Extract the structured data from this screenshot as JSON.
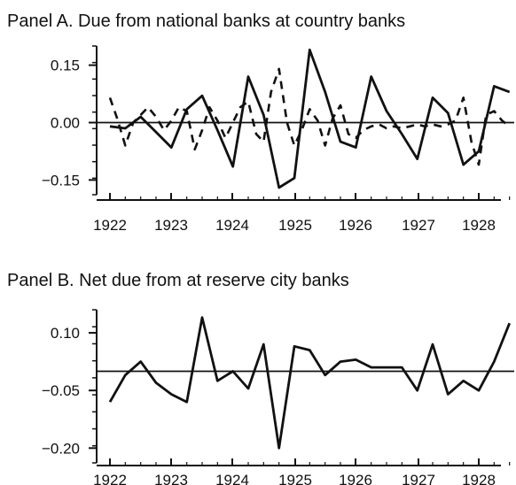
{
  "chart_data": [
    {
      "type": "line",
      "title": "Panel A. Due from national banks at country banks",
      "xlabel": "",
      "ylabel": "",
      "x_ticks": [
        "1922",
        "1923",
        "1924",
        "1925",
        "1926",
        "1927",
        "1928"
      ],
      "y_ticks": [
        "0.15",
        "0.00",
        "−0.15"
      ],
      "x_range": [
        1922,
        1928.75
      ],
      "y_range": [
        -0.17,
        0.2
      ],
      "reference_line": 0.0,
      "series": [
        {
          "style": "solid",
          "x": [
            1922.0,
            1922.25,
            1922.5,
            1922.75,
            1923.0,
            1923.25,
            1923.5,
            1923.75,
            1924.0,
            1924.25,
            1924.5,
            1924.75,
            1925.0,
            1925.25,
            1925.5,
            1925.75,
            1926.0,
            1926.25,
            1926.5,
            1926.75,
            1927.0,
            1927.25,
            1927.5,
            1927.75,
            1928.0,
            1928.25,
            1928.5
          ],
          "values": [
            -0.01,
            -0.015,
            0.015,
            -0.025,
            -0.065,
            0.035,
            0.07,
            -0.02,
            -0.115,
            0.12,
            0.02,
            -0.17,
            -0.145,
            0.19,
            0.08,
            -0.05,
            -0.065,
            0.12,
            0.03,
            -0.03,
            -0.095,
            0.065,
            0.025,
            -0.11,
            -0.075,
            0.095,
            0.08
          ]
        },
        {
          "style": "dashed",
          "x": [
            1922.0,
            1922.12,
            1922.25,
            1922.38,
            1922.5,
            1922.62,
            1922.75,
            1922.88,
            1923.0,
            1923.12,
            1923.25,
            1923.38,
            1923.5,
            1923.62,
            1923.75,
            1923.88,
            1924.0,
            1924.12,
            1924.25,
            1924.38,
            1924.5,
            1924.62,
            1924.75,
            1924.88,
            1925.0,
            1925.12,
            1925.25,
            1925.38,
            1925.5,
            1925.62,
            1925.75,
            1925.88,
            1926.0,
            1926.12,
            1926.25,
            1926.38,
            1926.5,
            1926.62,
            1926.75,
            1926.88,
            1927.0,
            1927.12,
            1927.25,
            1927.38,
            1927.5,
            1927.62,
            1927.75,
            1927.88,
            1928.0,
            1928.12,
            1928.25,
            1928.38,
            1928.5
          ],
          "values": [
            0.065,
            0.01,
            -0.06,
            0.0,
            0.02,
            0.04,
            0.015,
            -0.02,
            0.005,
            0.04,
            0.03,
            -0.07,
            -0.02,
            0.04,
            0.005,
            -0.04,
            0.0,
            0.04,
            0.055,
            -0.03,
            -0.05,
            0.08,
            0.14,
            0.0,
            -0.06,
            -0.02,
            0.035,
            0.005,
            -0.06,
            0.01,
            0.045,
            -0.03,
            -0.04,
            -0.02,
            -0.01,
            -0.005,
            -0.015,
            -0.01,
            -0.015,
            -0.01,
            -0.005,
            -0.01,
            -0.005,
            -0.01,
            -0.005,
            0.005,
            0.065,
            -0.05,
            -0.11,
            0.02,
            0.03,
            0.005,
            -0.01
          ]
        }
      ]
    },
    {
      "type": "line",
      "title": "Panel B. Net due from at reserve city banks",
      "xlabel": "",
      "ylabel": "",
      "x_ticks": [
        "1922",
        "1923",
        "1924",
        "1925",
        "1926",
        "1927",
        "1928"
      ],
      "y_ticks": [
        "0.10",
        "−0.05",
        "−0.20"
      ],
      "x_range": [
        1922,
        1928.75
      ],
      "y_range": [
        -0.22,
        0.16
      ],
      "reference_line": 0.0,
      "series": [
        {
          "style": "solid",
          "x": [
            1922.0,
            1922.25,
            1922.5,
            1922.75,
            1923.0,
            1923.25,
            1923.5,
            1923.75,
            1924.0,
            1924.25,
            1924.5,
            1924.75,
            1925.0,
            1925.25,
            1925.5,
            1925.75,
            1926.0,
            1926.25,
            1926.5,
            1926.75,
            1927.0,
            1927.25,
            1927.5,
            1927.75,
            1928.0,
            1928.25,
            1928.5
          ],
          "values": [
            -0.08,
            -0.01,
            0.025,
            -0.03,
            -0.06,
            -0.08,
            0.14,
            -0.025,
            0.0,
            -0.045,
            0.07,
            -0.2,
            0.065,
            0.055,
            -0.01,
            0.025,
            0.03,
            0.01,
            0.01,
            0.01,
            -0.05,
            0.07,
            -0.06,
            -0.025,
            -0.05,
            0.025,
            0.125
          ]
        }
      ]
    }
  ]
}
